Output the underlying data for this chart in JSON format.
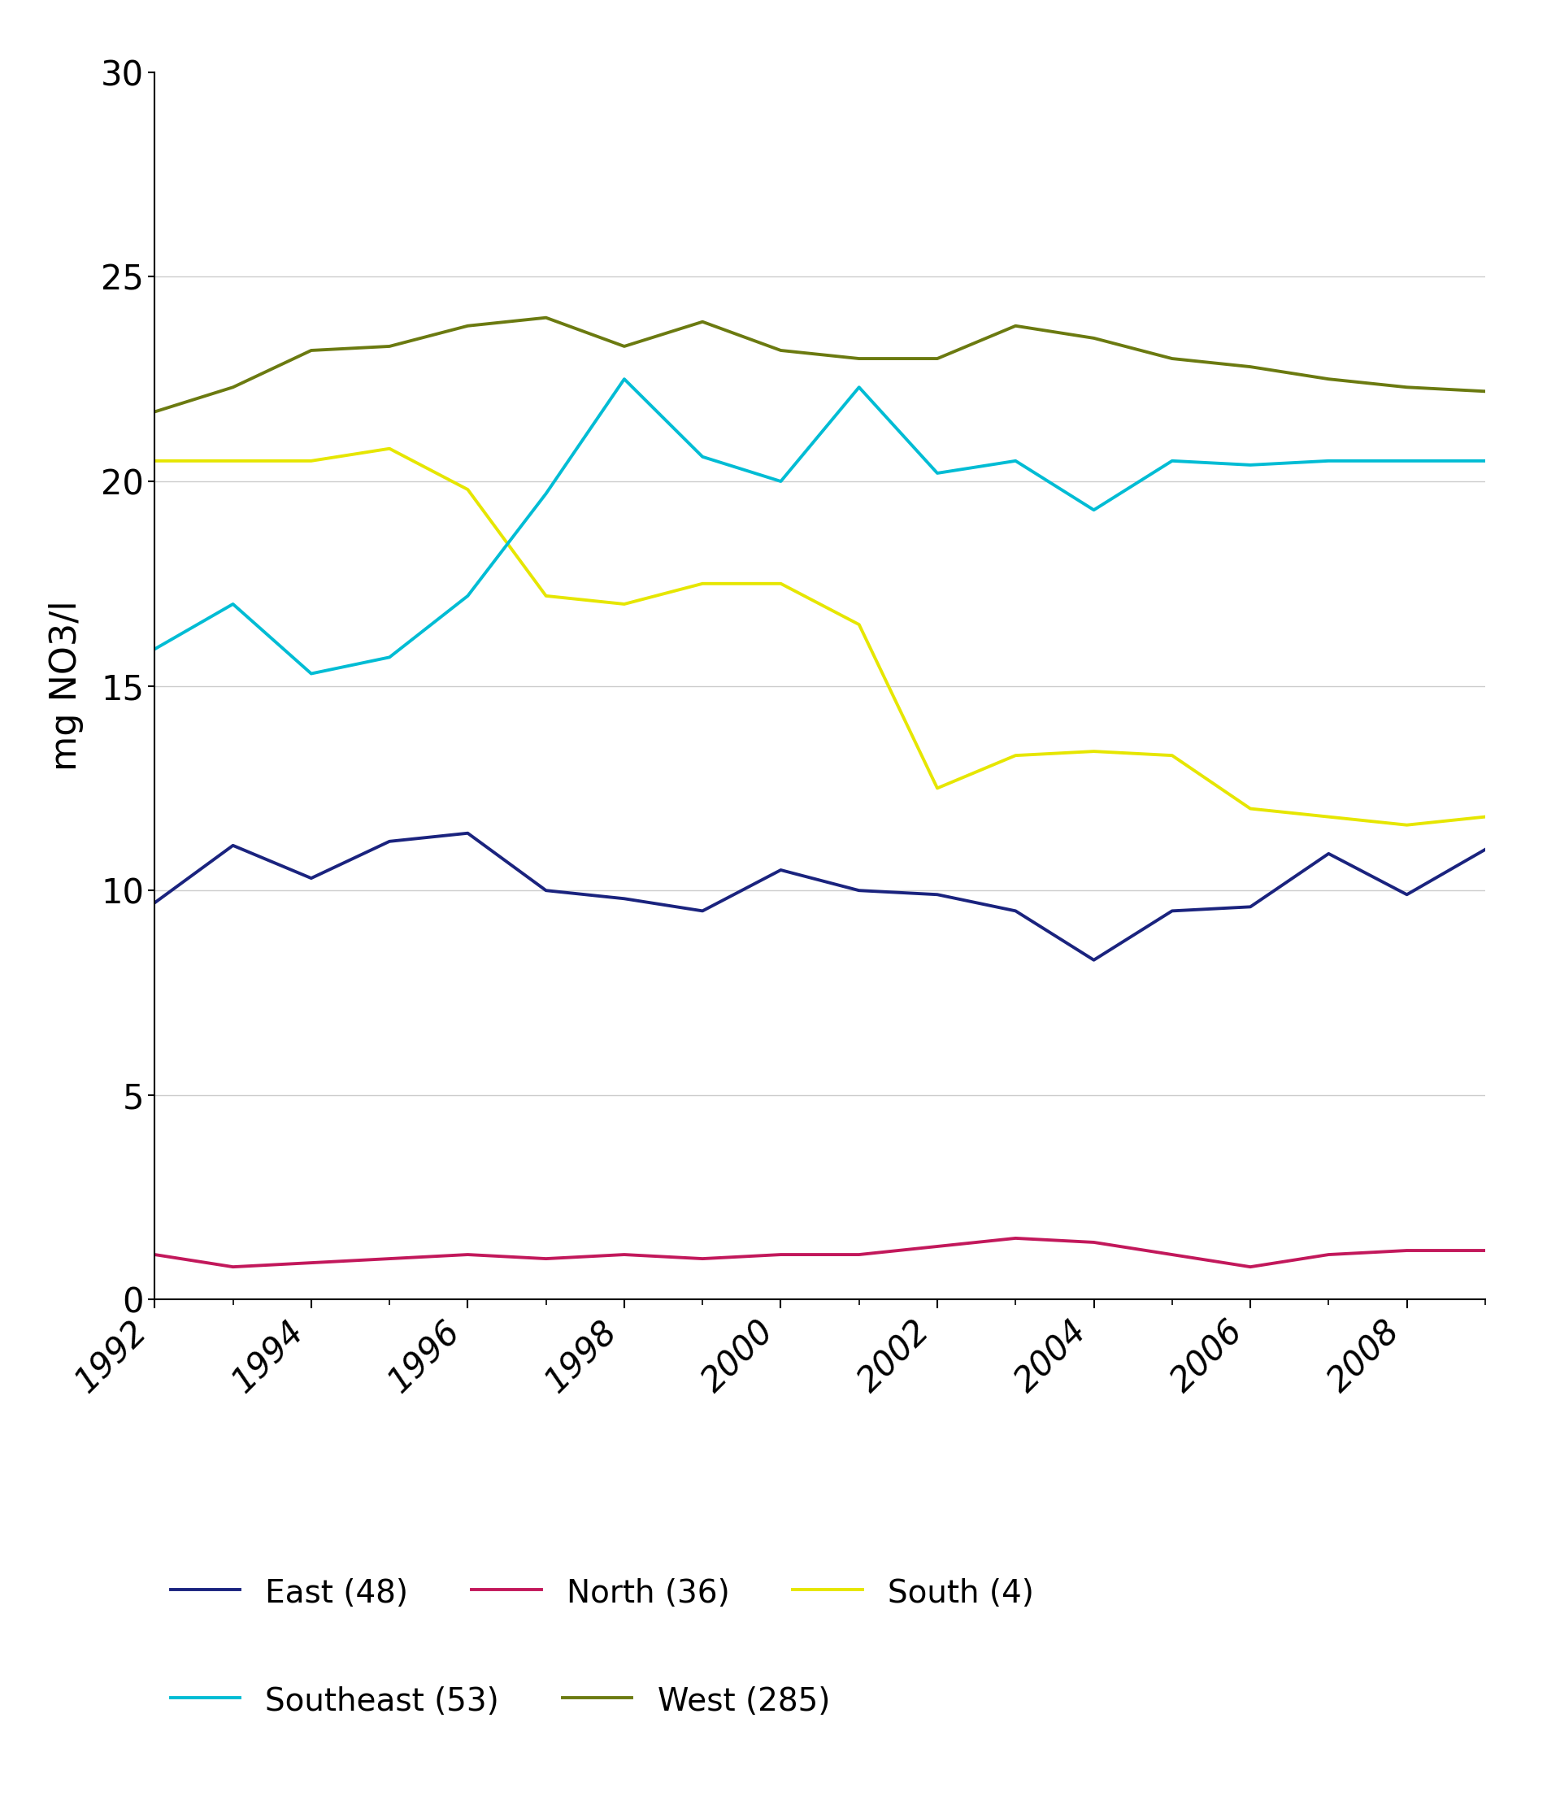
{
  "years": [
    1992,
    1993,
    1994,
    1995,
    1996,
    1997,
    1998,
    1999,
    2000,
    2001,
    2002,
    2003,
    2004,
    2005,
    2006,
    2007,
    2008,
    2009
  ],
  "east": [
    9.7,
    11.1,
    10.3,
    11.2,
    11.4,
    10.0,
    9.8,
    9.5,
    10.5,
    10.0,
    9.9,
    9.5,
    8.3,
    9.5,
    9.6,
    10.9,
    9.9,
    11.0
  ],
  "north": [
    1.1,
    0.8,
    0.9,
    1.0,
    1.1,
    1.0,
    1.1,
    1.0,
    1.1,
    1.1,
    1.3,
    1.5,
    1.4,
    1.1,
    0.8,
    1.1,
    1.2,
    1.2
  ],
  "south": [
    20.5,
    20.5,
    20.5,
    20.8,
    19.8,
    17.2,
    17.0,
    17.5,
    17.5,
    16.5,
    12.5,
    13.3,
    13.4,
    13.3,
    12.0,
    11.8,
    11.6,
    11.8
  ],
  "southeast": [
    15.9,
    17.0,
    15.3,
    15.7,
    17.2,
    19.7,
    22.5,
    20.6,
    20.0,
    22.3,
    20.2,
    20.5,
    19.3,
    20.5,
    20.4,
    20.5,
    20.5,
    20.5
  ],
  "west": [
    21.7,
    22.3,
    23.2,
    23.3,
    23.8,
    24.0,
    23.3,
    23.9,
    23.2,
    23.0,
    23.0,
    23.8,
    23.5,
    23.0,
    22.8,
    22.5,
    22.3,
    22.2
  ],
  "east_color": "#1a237e",
  "north_color": "#c2185b",
  "south_color": "#e6e600",
  "southeast_color": "#00bcd4",
  "west_color": "#6b7a10",
  "ylabel": "mg NO3/l",
  "ylim": [
    0,
    30
  ],
  "yticks": [
    0,
    5,
    10,
    15,
    20,
    25,
    30
  ],
  "grid_yticks": [
    5,
    10,
    15,
    20,
    25
  ],
  "xlim": [
    1992,
    2009
  ],
  "xticks": [
    1992,
    1994,
    1996,
    1998,
    2000,
    2002,
    2004,
    2006,
    2008
  ],
  "legend_labels": [
    "East (48)",
    "North (36)",
    "South (4)",
    "Southeast (53)",
    "West (285)"
  ],
  "legend_colors": [
    "#1a237e",
    "#c2185b",
    "#e6e600",
    "#00bcd4",
    "#6b7a10"
  ],
  "linewidth": 2.8,
  "background_color": "#ffffff",
  "grid_color": "#cccccc"
}
